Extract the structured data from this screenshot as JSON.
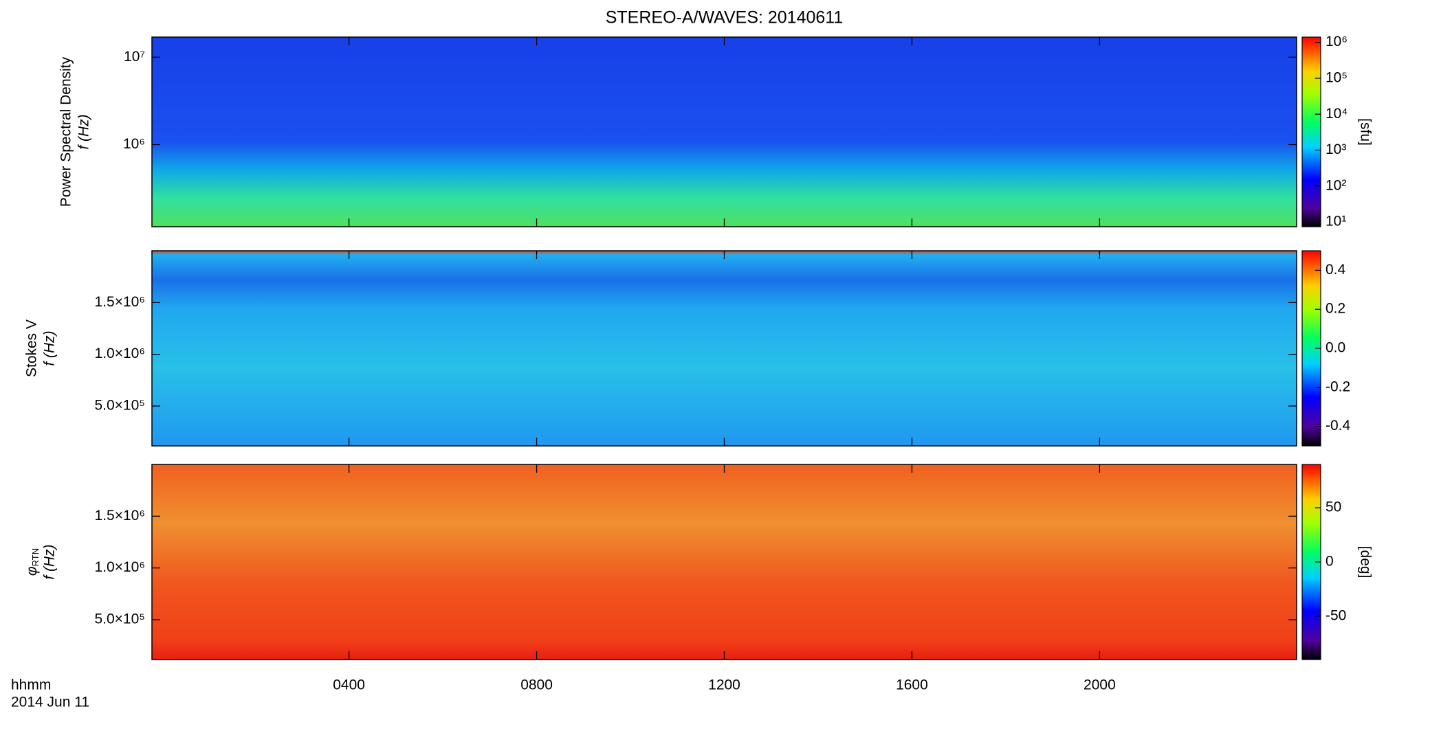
{
  "chart_data": [
    {
      "type": "heatmap",
      "title": "STEREO-A/WAVES: 20140611",
      "ylabel": [
        "Power Spectral Density",
        "f (Hz)"
      ],
      "ylog": true,
      "ylim": [
        115000,
        17000000
      ],
      "yticks": [
        {
          "value": 1000000,
          "label": "10⁶"
        },
        {
          "value": 10000000,
          "label": "10⁷"
        }
      ],
      "colorbar": {
        "log": true,
        "label": "[sfu]",
        "lim": [
          7.4,
          1400000
        ],
        "ticks": [
          {
            "value": 10,
            "label": "10¹"
          },
          {
            "value": 100,
            "label": "10²"
          },
          {
            "value": 1000,
            "label": "10³"
          },
          {
            "value": 10000,
            "label": "10⁴"
          },
          {
            "value": 100000,
            "label": "10⁵"
          },
          {
            "value": 1000000,
            "label": "10⁶"
          }
        ]
      }
    },
    {
      "type": "heatmap",
      "ylabel": [
        "Stokes V",
        "f (Hz)"
      ],
      "ylog": false,
      "ylim": [
        115000,
        2000000
      ],
      "yticks": [
        {
          "value": 500000,
          "label": "5.0×10⁵"
        },
        {
          "value": 1000000,
          "label": "1.0×10⁶"
        },
        {
          "value": 1500000,
          "label": "1.5×10⁶"
        }
      ],
      "colorbar": {
        "log": false,
        "lim": [
          -0.5,
          0.5
        ],
        "ticks": [
          {
            "value": -0.4,
            "label": "-0.4"
          },
          {
            "value": -0.2,
            "label": "-0.2"
          },
          {
            "value": 0,
            "label": "0.0"
          },
          {
            "value": 0.2,
            "label": "0.2"
          },
          {
            "value": 0.4,
            "label": "0.4"
          }
        ]
      }
    },
    {
      "type": "heatmap",
      "ylabel": [
        "φ",
        "RTN",
        "f (Hz)"
      ],
      "ylog": false,
      "ylim": [
        115000,
        2000000
      ],
      "yticks": [
        {
          "value": 500000,
          "label": "5.0×10⁵"
        },
        {
          "value": 1000000,
          "label": "1.0×10⁶"
        },
        {
          "value": 1500000,
          "label": "1.5×10⁶"
        }
      ],
      "colorbar": {
        "log": false,
        "label": "[deg]",
        "lim": [
          -90,
          90
        ],
        "ticks": [
          -50,
          0,
          50
        ]
      },
      "xlabel": [
        "hhmm",
        "2014 Jun 11"
      ],
      "xlim": [
        -0.2,
        24.2
      ],
      "xticks": [
        {
          "value": 4,
          "label": "0400"
        },
        {
          "value": 8,
          "label": "0800"
        },
        {
          "value": 12,
          "label": "1200"
        },
        {
          "value": 16,
          "label": "1600"
        },
        {
          "value": 20,
          "label": "2000"
        }
      ]
    }
  ]
}
